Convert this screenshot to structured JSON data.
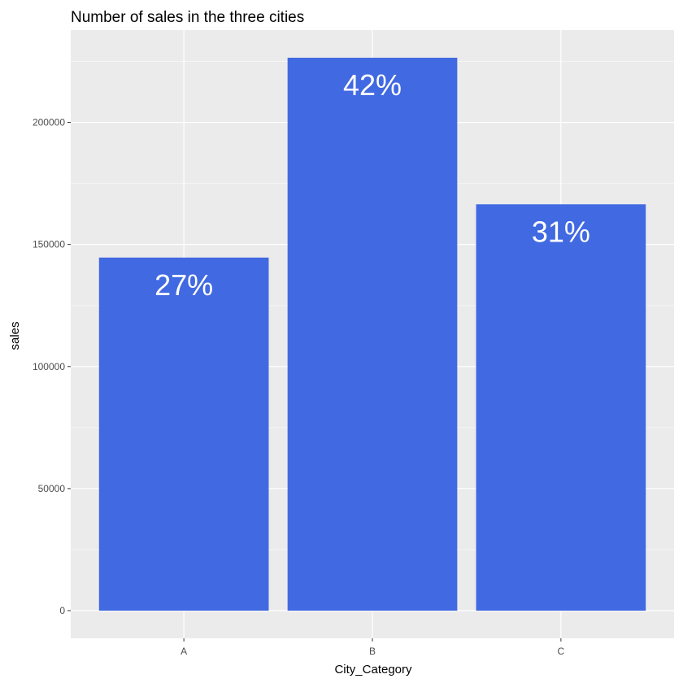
{
  "colors": {
    "panel_background": "#ebebeb",
    "grid_major": "#ffffff",
    "grid_minor": "#f5f5f5",
    "bar_fill": "#4169e1",
    "bar_label": "#ffffff",
    "tick_label": "#4d4d4d",
    "tick_mark": "#333333",
    "text": "#000000"
  },
  "chart_data": {
    "type": "bar",
    "title": "Number of sales in the three cities",
    "xlabel": "City_Category",
    "ylabel": "sales",
    "categories": [
      "A",
      "B",
      "C"
    ],
    "values": [
      144638,
      226493,
      166446
    ],
    "bar_labels": [
      "27%",
      "42%",
      "31%"
    ],
    "ylim": [
      -11325,
      237818
    ],
    "y_ticks": [
      0,
      50000,
      100000,
      150000,
      200000
    ],
    "y_tick_labels": [
      "0",
      "50000",
      "100000",
      "150000",
      "200000"
    ],
    "grid": true,
    "legend": "none"
  }
}
